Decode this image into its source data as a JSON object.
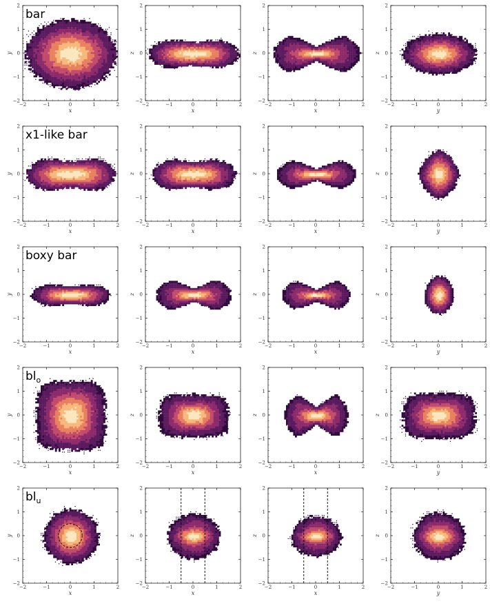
{
  "chart_data": {
    "type": "heatmap",
    "description": "5 rows x 4 columns of density maps of particle positions in projections",
    "colormap": [
      "#2d0a3a",
      "#5a1a5e",
      "#8c2a6b",
      "#c24a6a",
      "#e8805f",
      "#f7b87a",
      "#fbe7bf"
    ],
    "frame_color": "#000000",
    "dashed_color": "#000000",
    "xlim": [
      -2,
      2
    ],
    "ylim": [
      -2,
      2
    ],
    "ticks": [
      -2,
      -1,
      0,
      1,
      2
    ],
    "tick_labels": [
      "−2",
      "−1",
      "0",
      "1",
      "2"
    ],
    "columns": [
      {
        "xlabel": "x",
        "ylabel": "y"
      },
      {
        "xlabel": "x",
        "ylabel": "z"
      },
      {
        "xlabel": "x",
        "ylabel": "z"
      },
      {
        "xlabel": "y",
        "ylabel": "z"
      }
    ],
    "rows": [
      {
        "title": "bar",
        "title_sub": "",
        "panels": [
          {
            "rx": 1.9,
            "ry": 1.45,
            "shape": "ellipse",
            "core": [
              0.9,
              0.6
            ]
          },
          {
            "rx": 1.9,
            "ry": 0.65,
            "shape": "peanut",
            "core": [
              0.8,
              0.3
            ]
          },
          {
            "rx": 1.85,
            "ry": 0.9,
            "shape": "x",
            "core": [
              0.4,
              0.1
            ]
          },
          {
            "rx": 1.55,
            "ry": 0.85,
            "shape": "ellipse",
            "core": [
              0.6,
              0.3
            ]
          }
        ]
      },
      {
        "title": "x1-like bar",
        "title_sub": "",
        "panels": [
          {
            "rx": 1.85,
            "ry": 0.75,
            "shape": "peanut",
            "core": [
              0.9,
              0.35
            ]
          },
          {
            "rx": 1.75,
            "ry": 0.7,
            "shape": "peanut",
            "core": [
              0.7,
              0.3
            ]
          },
          {
            "rx": 1.7,
            "ry": 0.7,
            "shape": "x",
            "core": [
              0.45,
              0.12
            ]
          },
          {
            "rx": 0.85,
            "ry": 1.05,
            "shape": "diamond",
            "core": [
              0.35,
              0.45
            ]
          }
        ]
      },
      {
        "title": "boxy bar",
        "title_sub": "",
        "panels": [
          {
            "rx": 1.65,
            "ry": 0.5,
            "shape": "peanut",
            "core": [
              0.6,
              0.2
            ]
          },
          {
            "rx": 1.6,
            "ry": 0.75,
            "shape": "x",
            "core": [
              0.4,
              0.15
            ]
          },
          {
            "rx": 1.45,
            "ry": 0.7,
            "shape": "x",
            "core": [
              0.3,
              0.08
            ]
          },
          {
            "rx": 0.6,
            "ry": 0.8,
            "shape": "ellipse",
            "core": [
              0.25,
              0.35
            ]
          }
        ]
      },
      {
        "title": "bl",
        "title_sub": "o",
        "panels": [
          {
            "rx": 1.45,
            "ry": 1.45,
            "shape": "box",
            "core": [
              0.6,
              0.7
            ]
          },
          {
            "rx": 1.45,
            "ry": 0.9,
            "shape": "box",
            "core": [
              0.55,
              0.3
            ]
          },
          {
            "rx": 1.35,
            "ry": 1.05,
            "shape": "x",
            "core": [
              0.35,
              0.15
            ]
          },
          {
            "rx": 1.5,
            "ry": 0.95,
            "shape": "box",
            "core": [
              0.6,
              0.3
            ]
          }
        ]
      },
      {
        "title": "bl",
        "title_sub": "u",
        "panels": [
          {
            "rx": 1.15,
            "ry": 1.15,
            "shape": "ellipse",
            "core": [
              0.45,
              0.45
            ],
            "dashed_circle_r": 0.5
          },
          {
            "rx": 1.1,
            "ry": 0.95,
            "shape": "ellipse",
            "core": [
              0.45,
              0.15
            ],
            "dashed_vlines": [
              -0.5,
              0.5
            ]
          },
          {
            "rx": 1.05,
            "ry": 0.85,
            "shape": "ellipse",
            "core": [
              0.4,
              0.12
            ],
            "dashed_vlines": [
              -0.5,
              0.5
            ]
          },
          {
            "rx": 1.1,
            "ry": 1.0,
            "shape": "ellipse",
            "core": [
              0.45,
              0.18
            ]
          }
        ]
      }
    ]
  }
}
